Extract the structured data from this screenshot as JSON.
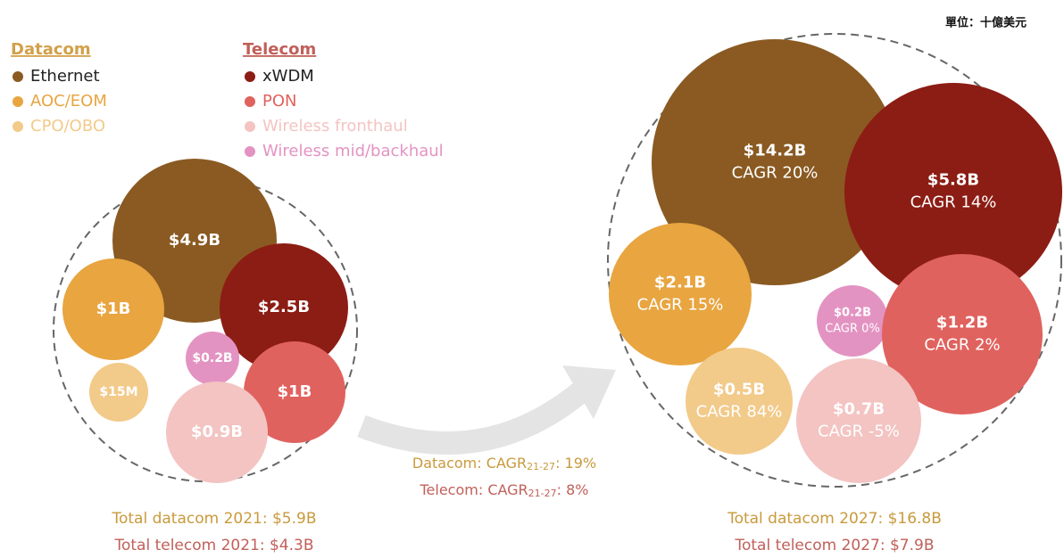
{
  "unit": "單位：十億美元",
  "legend": {
    "datacom": {
      "title": "Datacom",
      "items": [
        "Ethernet",
        "AOC/EOM",
        "CPO/OBO"
      ]
    },
    "telecom": {
      "title": "Telecom",
      "items": [
        "xWDM",
        "PON",
        "Wireless fronthaul",
        "Wireless mid/backhaul"
      ]
    }
  },
  "bubbles_2021": [
    {
      "label": "$4.9B"
    },
    {
      "label": "$1B"
    },
    {
      "label": "$2.5B"
    },
    {
      "label": "$0.2B"
    },
    {
      "label": "$15M"
    },
    {
      "label": "$1B"
    },
    {
      "label": "$0.9B"
    }
  ],
  "bubbles_2027": [
    {
      "label": "$14.2B",
      "cagr": "CAGR 20%"
    },
    {
      "label": "$5.8B",
      "cagr": "CAGR 14%"
    },
    {
      "label": "$2.1B",
      "cagr": "CAGR 15%"
    },
    {
      "label": "$0.2B",
      "cagr": "CAGR 0%"
    },
    {
      "label": "$1.2B",
      "cagr": "CAGR 2%"
    },
    {
      "label": "$0.5B",
      "cagr": "CAGR 84%"
    },
    {
      "label": "$0.7B",
      "cagr": "CAGR -5%"
    }
  ],
  "growth": [
    {
      "prefix": "Datacom: CAGR",
      "sub": "21-27",
      "suffix": ": 19%"
    },
    {
      "prefix": "Telecom: CAGR",
      "sub": "21-27",
      "suffix": ": 8%"
    }
  ],
  "totals_2021": [
    "Total datacom 2021: $5.9B",
    "Total telecom 2021: $4.3B"
  ],
  "totals_2027": [
    "Total datacom 2027: $16.8B",
    "Total telecom 2027: $7.9B"
  ]
}
